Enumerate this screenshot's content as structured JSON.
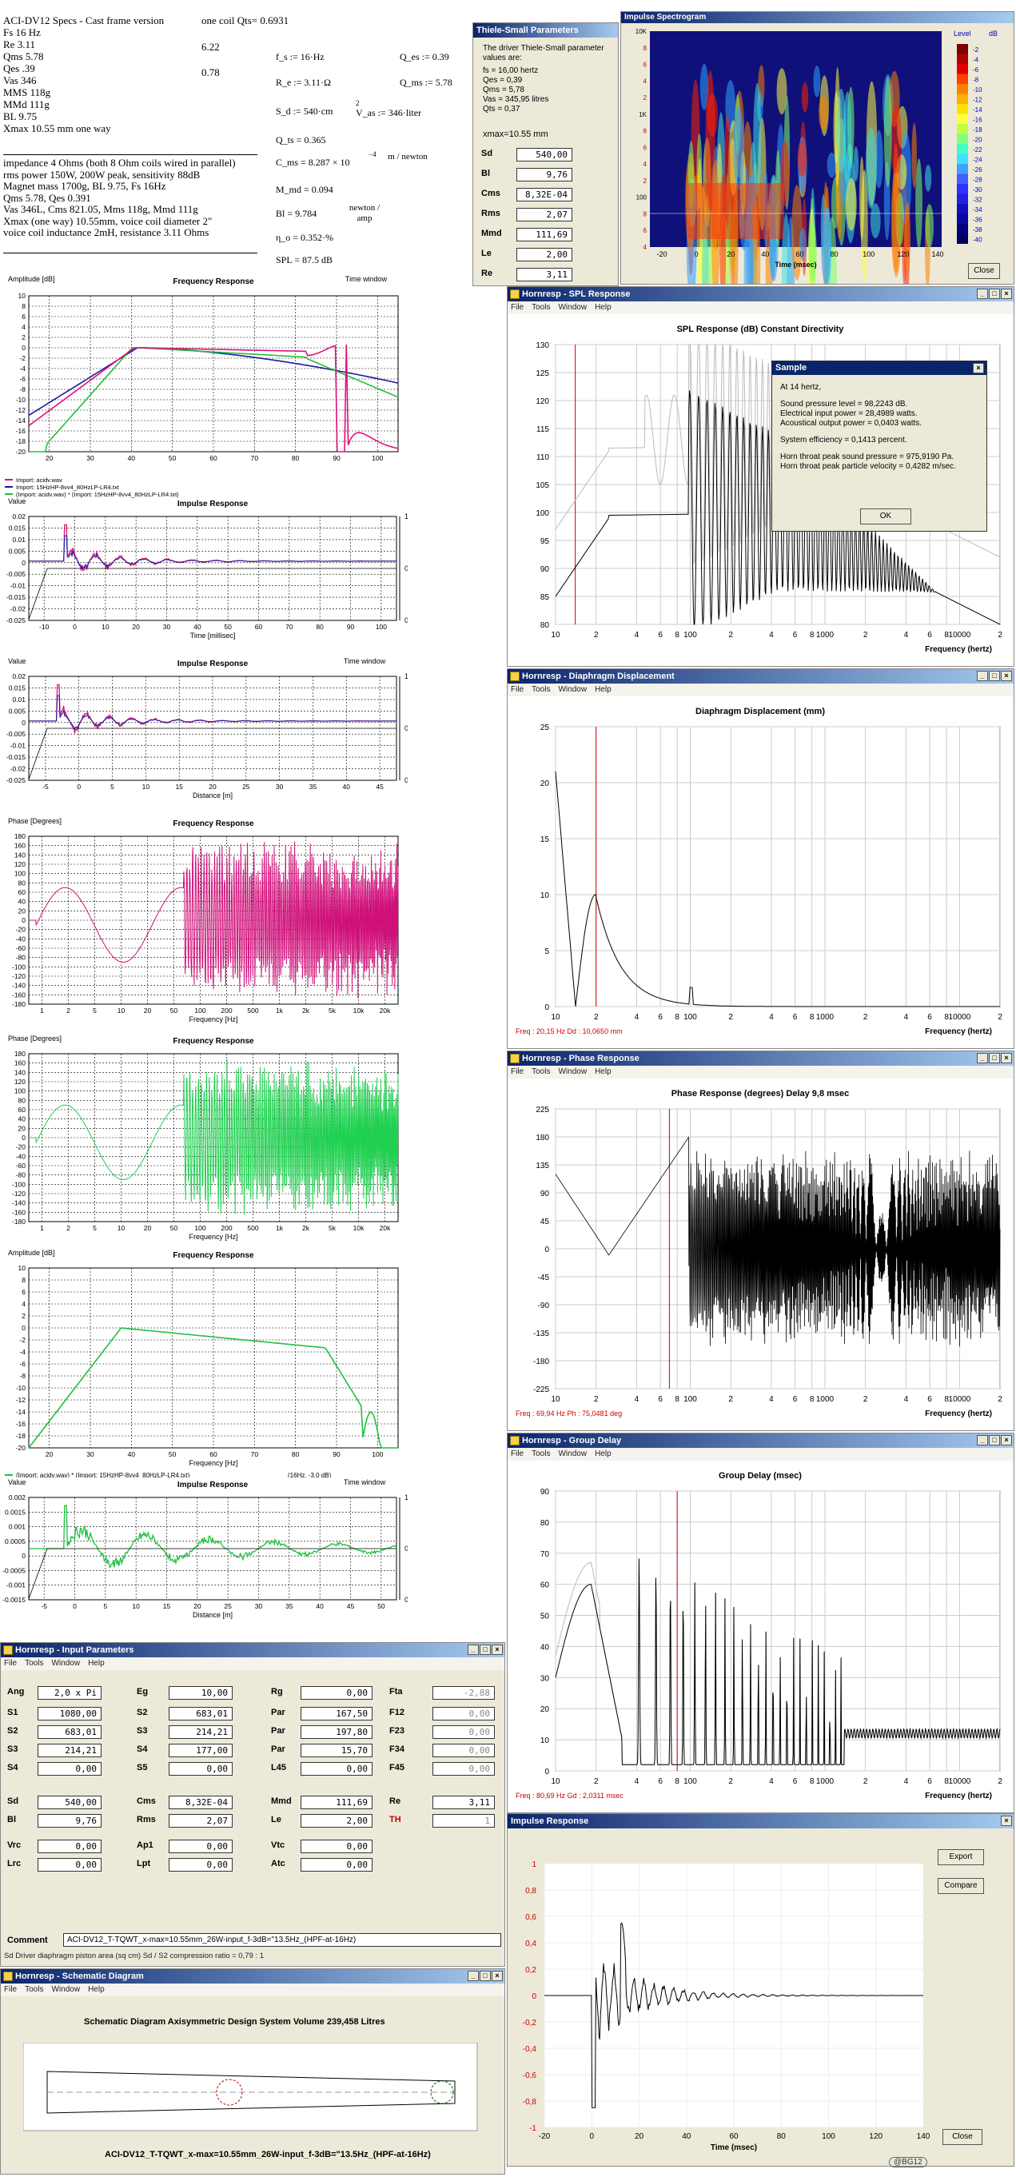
{
  "specs": {
    "title": "ACI-DV12 Specs - Cast frame version",
    "qts": "one coil Qts= 0.6931",
    "lines": [
      "Fs 16 Hz",
      "Re 3.11",
      "Qms 5.78",
      "Qes .39",
      "Vas 346",
      "MMS 118g",
      "MMd 111g",
      "BL 9.75",
      "Xmax 10.55 mm one way"
    ],
    "re_val": "6.22",
    "qes_val": "0.78",
    "desc": [
      "impedance 4 Ohms (both 8 Ohm coils wired in parallel)",
      "rms power 150W, 200W peak, sensitivity 88dB",
      "Magnet mass 1700g, BL 9.75, Fs 16Hz",
      "Qms 5.78, Qes 0.391",
      "Vas 346L, Cms 821.05, Mms 118g, Mmd 111g",
      "Xmax (one way) 10.55mm, voice coil diameter 2\"",
      "voice coil inductance 2mH, resistance 3.11 Ohms"
    ],
    "eq": {
      "fs": "f_s := 16·Hz",
      "qes": "Q_es := 0.39",
      "re": "R_e := 3.11·Ω",
      "qms": "Q_ms := 5.78",
      "sd": "S_d := 540·cm",
      "vas": "V_as := 346·liter",
      "qts": "Q_ts = 0.365",
      "cms": "C_ms = 8.287 × 10",
      "cms_unit": "m / newton",
      "mmd": "M_md = 0.094",
      "bl": "Bl = 9.784",
      "bl_unit": "newton / amp",
      "eta": "η_o = 0.352·%",
      "spl": "SPL = 87.5   dB"
    }
  },
  "ts": {
    "title": "Thiele-Small Parameters",
    "intro": "The driver Thiele-Small parameter values are:",
    "lines": [
      "fs = 16,00 hertz",
      "Qes = 0,39",
      "Qms = 5,78",
      "Vas = 345,95 litres",
      "Qts = 0,37"
    ],
    "xmax": "xmax=10.55 mm",
    "fields": [
      {
        "k": "Sd",
        "v": "540,00"
      },
      {
        "k": "Bl",
        "v": "9,76"
      },
      {
        "k": "Cms",
        "v": "8,32E-04"
      },
      {
        "k": "Rms",
        "v": "2,07"
      },
      {
        "k": "Mmd",
        "v": "111,69"
      },
      {
        "k": "Le",
        "v": "2,00"
      },
      {
        "k": "Re",
        "v": "3,11"
      }
    ]
  },
  "spectro": {
    "title": "Impulse Spectrogram",
    "level": "Level",
    "db_unit": "dB",
    "ylabels": [
      "10K",
      "8",
      "6",
      "4",
      "2",
      "1K",
      "8",
      "6",
      "4",
      "2",
      "100",
      "8",
      "6",
      "4"
    ],
    "xlabels": [
      "-20",
      "0",
      "20",
      "40",
      "60",
      "80",
      "100",
      "120",
      "140"
    ],
    "xlabel": "Time (msec)",
    "scale": [
      "-2",
      "-4",
      "-6",
      "-8",
      "-10",
      "-12",
      "-14",
      "-16",
      "-18",
      "-20",
      "-22",
      "-24",
      "-26",
      "-28",
      "-30",
      "-32",
      "-34",
      "-36",
      "-38",
      "-40"
    ],
    "close": "Close"
  },
  "fr1": {
    "ylabel": "Amplitude [dB]",
    "title": "Frequency Response",
    "yt": [
      "10",
      "8",
      "6",
      "4",
      "2",
      "0",
      "-2",
      "-4",
      "-6",
      "-8",
      "-10",
      "-12",
      "-14",
      "-16",
      "-18",
      "-20"
    ],
    "xt": [
      "20",
      "30",
      "40",
      "50",
      "60",
      "70",
      "80",
      "90",
      "100"
    ],
    "legend": [
      "Import: acidv.wav",
      "Import: 15HzHP-8vv4_80HzLP-LR4.txt",
      "(Import: acidv.wav) * (Import: 15HzHP-8vv4_80HzLP-LR4.txt)"
    ],
    "tw": "Time window",
    "colors": [
      "#e0107a",
      "#1a1aa0",
      "#20c040"
    ]
  },
  "ir1": {
    "ylabel": "Value",
    "title": "Impulse Response",
    "yt": [
      "0.02",
      "0.015",
      "0.01",
      "0.005",
      "0",
      "-0.005",
      "-0.01",
      "-0.015",
      "-0.02",
      "-0.025"
    ],
    "xt": [
      "-10",
      "0",
      "10",
      "20",
      "30",
      "40",
      "50",
      "60",
      "70",
      "80",
      "90",
      "100"
    ],
    "xlabel": "Time [millisec]",
    "rt": [
      "1",
      "0.5",
      "0"
    ]
  },
  "ir2": {
    "ylabel": "Value",
    "title": "Impulse Response",
    "tw": "Time window",
    "yt": [
      "0.02",
      "0.015",
      "0.01",
      "0.005",
      "0",
      "-0.005",
      "-0.01",
      "-0.015",
      "-0.02",
      "-0.025"
    ],
    "xt": [
      "-5",
      "0",
      "5",
      "10",
      "15",
      "20",
      "25",
      "30",
      "35",
      "40",
      "45"
    ],
    "xlabel": "Distance [m]",
    "rt": [
      "1",
      "0.5",
      "0"
    ]
  },
  "ph1": {
    "ylabel": "Phase [Degrees]",
    "title": "Frequency Response",
    "yt": [
      "180",
      "160",
      "140",
      "120",
      "100",
      "80",
      "60",
      "40",
      "20",
      "0",
      "-20",
      "-40",
      "-60",
      "-80",
      "-100",
      "-120",
      "-140",
      "-160",
      "-180"
    ],
    "xt": [
      "1",
      "2",
      "5",
      "10",
      "20",
      "50",
      "100",
      "200",
      "500",
      "1k",
      "2k",
      "5k",
      "10k",
      "20k"
    ],
    "xlabel": "Frequency [Hz]"
  },
  "ph2": {
    "ylabel": "Phase [Degrees]",
    "title": "Frequency Response",
    "yt": [
      "180",
      "160",
      "140",
      "120",
      "100",
      "80",
      "60",
      "40",
      "20",
      "0",
      "-20",
      "-40",
      "-60",
      "-80",
      "-100",
      "-120",
      "-140",
      "-160",
      "-180"
    ],
    "xt": [
      "1",
      "2",
      "5",
      "10",
      "20",
      "50",
      "100",
      "200",
      "500",
      "1k",
      "2k",
      "5k",
      "10k",
      "20k"
    ],
    "xlabel": "Frequency [Hz]"
  },
  "fr2": {
    "ylabel": "Amplitude [dB]",
    "title": "Frequency Response",
    "yt": [
      "10",
      "8",
      "6",
      "4",
      "2",
      "0",
      "-2",
      "-4",
      "-6",
      "-8",
      "-10",
      "-12",
      "-14",
      "-16",
      "-18",
      "-20"
    ],
    "xt": [
      "20",
      "30",
      "40",
      "50",
      "60",
      "70",
      "80",
      "90",
      "100"
    ],
    "xlabel": "Frequency [Hz]",
    "legend": "(Import: acidv.wav) * (Import: 15HzHP-8vv4_80HzLP-LR4.txt)",
    "note": "(16Hz, -3.0 dB)"
  },
  "ir3": {
    "ylabel": "Value",
    "title": "Impulse Response",
    "tw": "Time window",
    "yt": [
      "0.002",
      "0.0015",
      "0.001",
      "0.0005",
      "0",
      "-0.0005",
      "-0.001",
      "-0.0015"
    ],
    "xt": [
      "-5",
      "0",
      "5",
      "10",
      "15",
      "20",
      "25",
      "30",
      "35",
      "40",
      "45",
      "50"
    ],
    "xlabel": "Distance [m]",
    "rt": [
      "1",
      "0.5",
      "0"
    ]
  },
  "spl": {
    "title": "Hornresp - SPL Response",
    "menu": [
      "File",
      "Tools",
      "Window",
      "Help"
    ],
    "ctitle": "SPL Response (dB)   Constant Directivity",
    "yt": [
      "130",
      "125",
      "120",
      "115",
      "110",
      "105",
      "100",
      "95",
      "90",
      "85",
      "80"
    ],
    "xt": [
      "10",
      "2",
      "4",
      "6",
      "8",
      "100",
      "2",
      "4",
      "6",
      "8",
      "1000",
      "2",
      "4",
      "6",
      "8",
      "10000",
      "2"
    ],
    "xlabel": "Frequency (hertz)",
    "sample": {
      "title": "Sample",
      "lines": [
        "At 14 hertz,",
        "Sound pressure level = 98,2243 dB.",
        "Electrical input power = 28,4989 watts.",
        "Acoustical output power = 0,0403 watts.",
        "System efficiency = 0,1413 percent.",
        "Horn throat peak sound pressure = 975,9190 Pa.",
        "Horn throat peak particle velocity = 0,4282 m/sec."
      ],
      "ok": "OK"
    }
  },
  "disp": {
    "title": "Hornresp - Diaphragm Displacement",
    "menu": [
      "File",
      "Tools",
      "Window",
      "Help"
    ],
    "ctitle": "Diaphragm Displacement (mm)",
    "yt": [
      "25",
      "20",
      "15",
      "10",
      "5",
      "0"
    ],
    "xt": [
      "10",
      "2",
      "4",
      "6",
      "8",
      "100",
      "2",
      "4",
      "6",
      "8",
      "1000",
      "2",
      "4",
      "6",
      "8",
      "10000",
      "2"
    ],
    "xlabel": "Frequency (hertz)",
    "status": "Freq : 20,15 Hz     Dd : 10,0650 mm"
  },
  "phase": {
    "title": "Hornresp - Phase Response",
    "menu": [
      "File",
      "Tools",
      "Window",
      "Help"
    ],
    "ctitle": "Phase Response (degrees)   Delay 9,8 msec",
    "yt": [
      "225",
      "180",
      "135",
      "90",
      "45",
      "0",
      "-45",
      "-90",
      "-135",
      "-180",
      "-225"
    ],
    "xt": [
      "10",
      "2",
      "4",
      "6",
      "8",
      "100",
      "2",
      "4",
      "6",
      "8",
      "1000",
      "2",
      "4",
      "6",
      "8",
      "10000",
      "2"
    ],
    "xlabel": "Frequency (hertz)",
    "status": "Freq : 69,94 Hz     Ph : 75,0481 deg"
  },
  "gd": {
    "title": "Hornresp - Group Delay",
    "menu": [
      "File",
      "Tools",
      "Window",
      "Help"
    ],
    "ctitle": "Group Delay (msec)",
    "yt": [
      "90",
      "80",
      "70",
      "60",
      "50",
      "40",
      "30",
      "20",
      "10",
      "0"
    ],
    "xt": [
      "10",
      "2",
      "4",
      "6",
      "8",
      "100",
      "2",
      "4",
      "6",
      "8",
      "1000",
      "2",
      "4",
      "6",
      "8",
      "10000",
      "2"
    ],
    "xlabel": "Frequency (hertz)",
    "status": "Freq : 80,69 Hz     Gd : 2,0311 msec"
  },
  "ir4": {
    "title": "Impulse Response",
    "yt": [
      "1",
      "0,8",
      "0,6",
      "0,4",
      "0,2",
      "0",
      "-0,2",
      "-0,4",
      "-0,6",
      "-0,8",
      "-1"
    ],
    "xt": [
      "-20",
      "0",
      "20",
      "40",
      "60",
      "80",
      "100",
      "120",
      "140"
    ],
    "xlabel": "Time (msec)",
    "export": "Export",
    "compare": "Compare",
    "close": "Close",
    "badge": "@BG12"
  },
  "inp": {
    "title": "Hornresp - Input Parameters",
    "menu": [
      "File",
      "Tools",
      "Window",
      "Help"
    ],
    "r1": [
      [
        "Ang",
        "2,0 x Pi"
      ],
      [
        "Eg",
        "10,00"
      ],
      [
        "Rg",
        "0,00"
      ],
      [
        "Fta",
        "-2,88"
      ]
    ],
    "r2": [
      [
        "S1",
        "1080,00"
      ],
      [
        "S2",
        "683,01"
      ],
      [
        "Par",
        "167,50"
      ],
      [
        "F12",
        "0,00"
      ]
    ],
    "r3": [
      [
        "S2",
        "683,01"
      ],
      [
        "S3",
        "214,21"
      ],
      [
        "Par",
        "197,80"
      ],
      [
        "F23",
        "0,00"
      ]
    ],
    "r4": [
      [
        "S3",
        "214,21"
      ],
      [
        "S4",
        "177,00"
      ],
      [
        "Par",
        "15,70"
      ],
      [
        "F34",
        "0,00"
      ]
    ],
    "r5": [
      [
        "S4",
        "0,00"
      ],
      [
        "S5",
        "0,00"
      ],
      [
        "L45",
        "0,00"
      ],
      [
        "F45",
        "0,00"
      ]
    ],
    "r6": [
      [
        "Sd",
        "540,00"
      ],
      [
        "Cms",
        "8,32E-04"
      ],
      [
        "Mmd",
        "111,69"
      ],
      [
        "Re",
        "3,11"
      ]
    ],
    "r7": [
      [
        "Bl",
        "9,76"
      ],
      [
        "Rms",
        "2,07"
      ],
      [
        "Le",
        "2,00"
      ],
      [
        "TH",
        "1"
      ]
    ],
    "r8": [
      [
        "Vrc",
        "0,00"
      ],
      [
        "Ap1",
        "0,00"
      ],
      [
        "Vtc",
        "0,00"
      ]
    ],
    "r9": [
      [
        "Lrc",
        "0,00"
      ],
      [
        "Lpt",
        "0,00"
      ],
      [
        "Atc",
        "0,00"
      ]
    ],
    "comment_label": "Comment",
    "comment": "ACI-DV12_T-TQWT_x-max=10.55mm_26W-input_f-3dB=\"13.5Hz_(HPF-at-16Hz)",
    "status": "Sd   Driver diaphragm piston area (sq cm)   Sd / S2 compression ratio = 0,79 : 1"
  },
  "sch": {
    "title": "Hornresp - Schematic Diagram",
    "menu": [
      "File",
      "Tools",
      "Window",
      "Help"
    ],
    "head": "Schematic Diagram    Axisymmetric Design    System Volume 239,458 Litres",
    "caption": "ACI-DV12_T-TQWT_x-max=10.55mm_26W-input_f-3dB=\"13.5Hz_(HPF-at-16Hz)"
  }
}
